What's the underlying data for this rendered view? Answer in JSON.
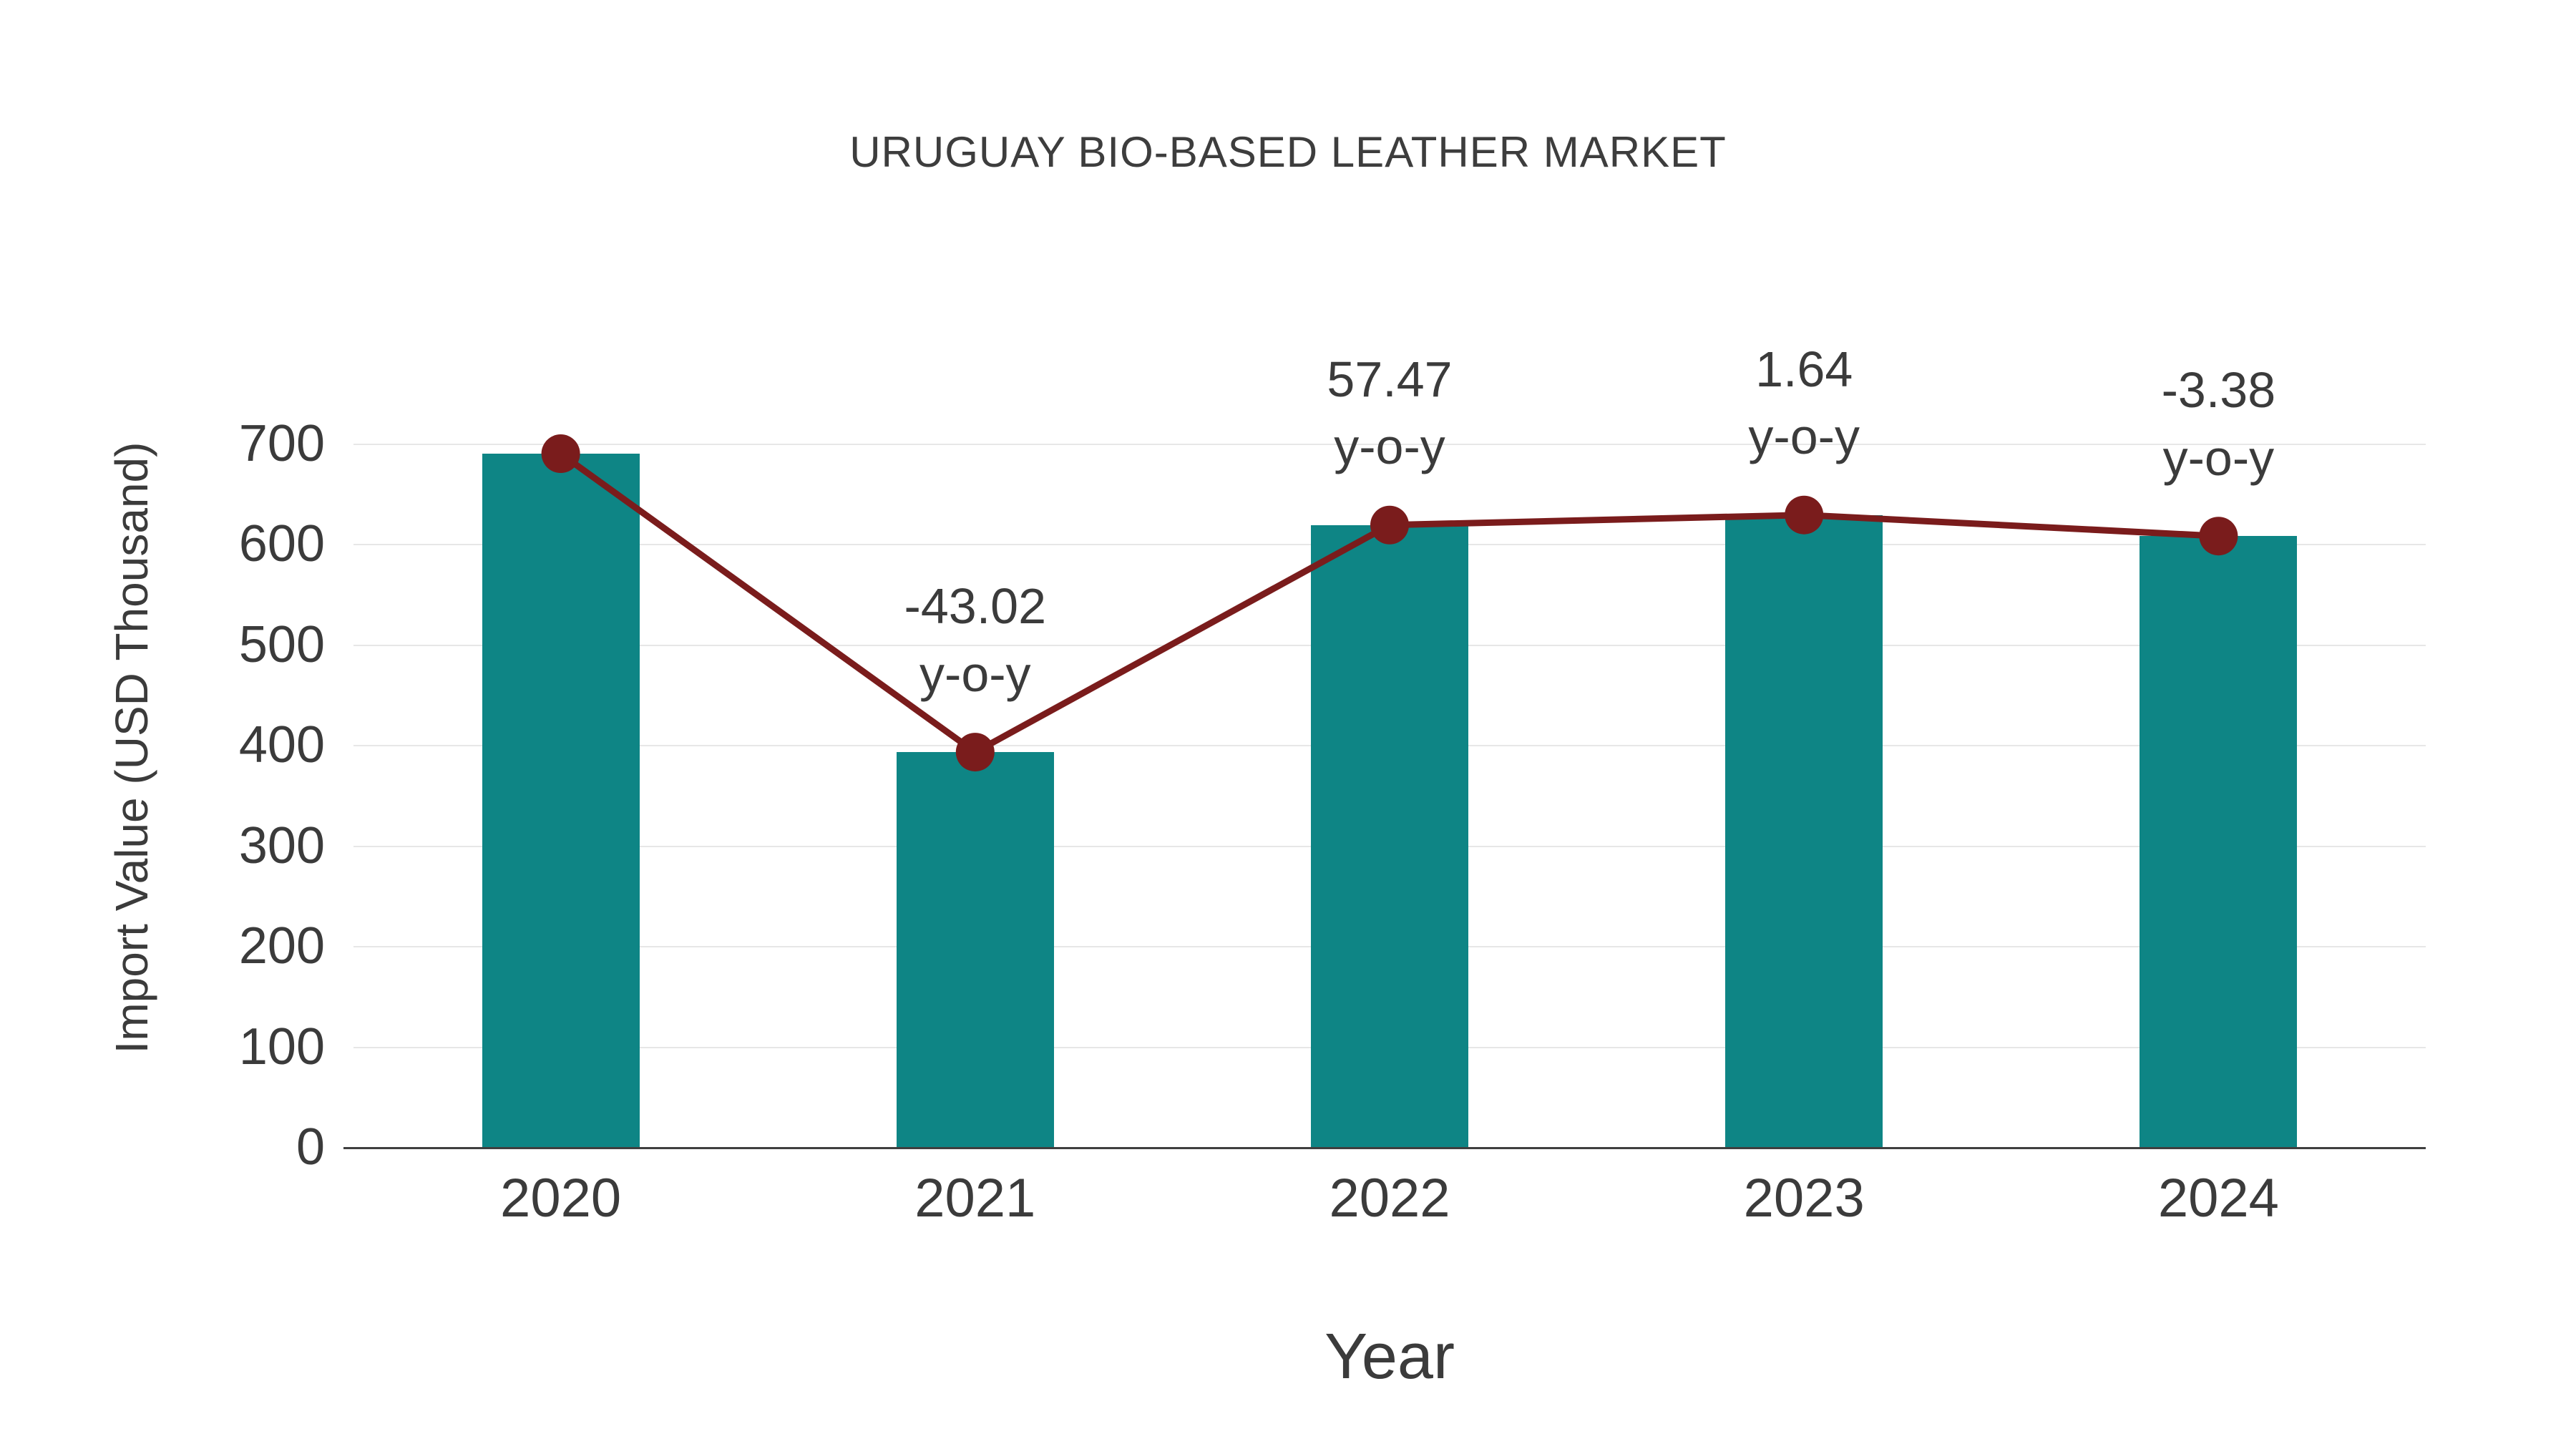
{
  "chart_data": {
    "type": "bar",
    "title": "URUGUAY BIO-BASED LEATHER MARKET",
    "xlabel": "Year",
    "ylabel": "Import Value (USD Thousand)",
    "categories": [
      "2020",
      "2021",
      "2022",
      "2023",
      "2024"
    ],
    "series": [
      {
        "name": "Import Value (USD Thousand)",
        "type": "bar",
        "values": [
          690,
          393,
          619,
          629,
          608
        ]
      },
      {
        "name": "y-o-y trend",
        "type": "line",
        "values": [
          690,
          393,
          619,
          629,
          608
        ]
      }
    ],
    "annotations": [
      {
        "category": "2021",
        "lines": [
          "-43.02",
          "y-o-y"
        ]
      },
      {
        "category": "2022",
        "lines": [
          "57.47",
          "y-o-y"
        ]
      },
      {
        "category": "2023",
        "lines": [
          "1.64",
          "y-o-y"
        ]
      },
      {
        "category": "2024",
        "lines": [
          "-3.38",
          "y-o-y"
        ]
      }
    ],
    "y_ticks": [
      0,
      100,
      200,
      300,
      400,
      500,
      600,
      700
    ],
    "ylim": [
      0,
      700
    ],
    "grid": true,
    "legend": "none",
    "colors": {
      "bar": "#0E8585",
      "line": "#7A1C1C",
      "marker": "#7A1C1C",
      "grid": "#E7E7E7",
      "axis": "#3F3F3F",
      "text": "#3B3B3B"
    }
  }
}
